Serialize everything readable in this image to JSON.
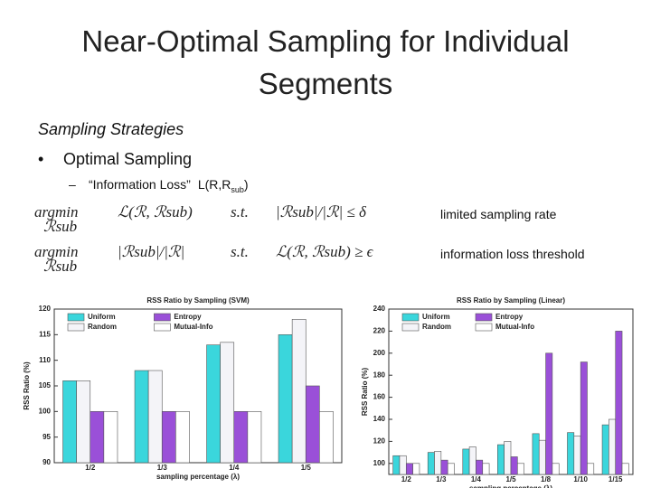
{
  "header": {
    "title_lines": [
      "Near-Optimal Sampling for Individual",
      "Segments"
    ]
  },
  "body": {
    "heading": "Sampling Strategies",
    "bullet": "Optimal Sampling",
    "dash": {
      "text": "“Information Loss”",
      "expr": "L(R,R",
      "expr_sub": "sub",
      "expr_end": ")"
    },
    "formulas": [
      {
        "op": "argmin",
        "op_sub": "ℛsub",
        "objective": "ℒ(ℛ, ℛsub)",
        "st": "s.t.",
        "constraint": "|ℛsub|/|ℛ| ≤ δ",
        "note": "limited sampling rate"
      },
      {
        "op": "argmin",
        "op_sub": "ℛsub",
        "objective": "|ℛsub|/|ℛ|",
        "st": "s.t.",
        "constraint": "ℒ(ℛ, ℛsub) ≥ ϵ",
        "note": "information loss threshold"
      }
    ]
  },
  "chart_data": [
    {
      "type": "bar",
      "title": "RSS Ratio by Sampling (SVM)",
      "xlabel": "sampling percentage (λ)",
      "ylabel": "RSS Ratio (%)",
      "categories": [
        "1/2",
        "1/3",
        "1/4",
        "1/5"
      ],
      "series": [
        {
          "name": "Uniform",
          "color": "#3ad6dc",
          "values": [
            106,
            108,
            113,
            115
          ]
        },
        {
          "name": "Random",
          "color": "#f4f4f8",
          "values": [
            106,
            108,
            113.5,
            118
          ]
        },
        {
          "name": "Entropy",
          "color": "#9a50d8",
          "values": [
            100,
            100,
            100,
            105
          ]
        },
        {
          "name": "Mutual-Info",
          "color": "#ffffff",
          "values": [
            100,
            100,
            100,
            100
          ]
        }
      ],
      "ylim": [
        90,
        120
      ],
      "yticks": [
        90,
        95,
        100,
        105,
        110,
        115,
        120
      ]
    },
    {
      "type": "bar",
      "title": "RSS Ratio by Sampling (Linear)",
      "xlabel": "sampling percentage (λ)",
      "ylabel": "RSS Ratio (%)",
      "categories": [
        "1/2",
        "1/3",
        "1/4",
        "1/5",
        "1/8",
        "1/10",
        "1/15"
      ],
      "series": [
        {
          "name": "Uniform",
          "color": "#3ad6dc",
          "values": [
            107,
            110,
            113,
            117,
            127,
            128,
            135
          ]
        },
        {
          "name": "Random",
          "color": "#f4f4f8",
          "values": [
            107,
            111,
            115,
            120,
            121,
            125,
            140
          ]
        },
        {
          "name": "Entropy",
          "color": "#9a50d8",
          "values": [
            100,
            103,
            103,
            106,
            200,
            192,
            220
          ]
        },
        {
          "name": "Mutual-Info",
          "color": "#ffffff",
          "values": [
            100,
            100,
            100,
            100,
            100,
            100,
            100
          ]
        }
      ],
      "ylim": [
        90,
        240
      ],
      "yticks": [
        100,
        120,
        140,
        160,
        180,
        200,
        220,
        240
      ]
    }
  ]
}
